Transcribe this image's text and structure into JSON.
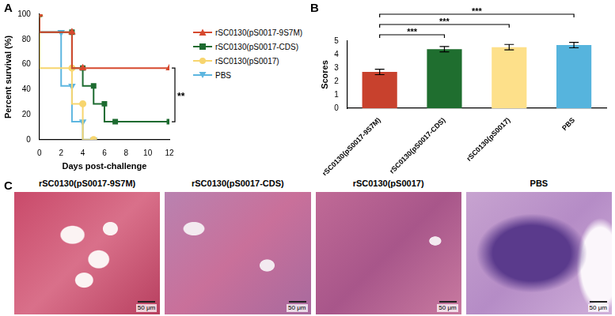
{
  "chart_data": [
    {
      "panel": "A",
      "type": "line",
      "line_style": "steps",
      "x_label": "Days post-challenge",
      "y_label": "Percent survival (%)",
      "xlim": [
        0,
        12
      ],
      "xticks": [
        0,
        2,
        4,
        6,
        8,
        10,
        12
      ],
      "ylim": [
        0,
        100
      ],
      "yticks": [
        0,
        20,
        40,
        60,
        80,
        100
      ],
      "grid": false,
      "legend": "right",
      "series": [
        {
          "name": "rSC0130(pS0017-9S7M)",
          "color": "#d6492e",
          "marker": "triangle",
          "x": [
            0,
            3,
            4,
            12
          ],
          "values": [
            100,
            85.7,
            57.1,
            57.1
          ]
        },
        {
          "name": "rSC0130(pS0017-CDS)",
          "color": "#1d6b30",
          "marker": "square",
          "x": [
            0,
            3,
            4,
            5,
            6,
            7,
            12
          ],
          "values": [
            100,
            85.7,
            57.1,
            42.9,
            28.6,
            14.3,
            14.3
          ]
        },
        {
          "name": "rSC0130(pS0017)",
          "color": "#f7d56e",
          "marker": "circle",
          "x": [
            0,
            3,
            4,
            5
          ],
          "values": [
            100,
            57.1,
            28.6,
            0
          ]
        },
        {
          "name": "PBS",
          "color": "#5db6e0",
          "marker": "triangle-down",
          "x": [
            0,
            2,
            3,
            4,
            5
          ],
          "values": [
            100,
            85.7,
            42.9,
            14.3,
            0
          ]
        }
      ],
      "annotations": [
        {
          "text": "**",
          "series": [
            "rSC0130(pS0017-9S7M)",
            "rSC0130(pS0017-CDS)"
          ]
        }
      ]
    },
    {
      "panel": "B",
      "type": "bar",
      "y_label": "Scores",
      "categories": [
        "rSC0130(pS0017-9S7M)",
        "rSC0130(pS0017-CDS)",
        "rSC0130(pS0017)",
        "PBS"
      ],
      "values": [
        2.7,
        4.4,
        4.55,
        4.7
      ],
      "errors": [
        0.2,
        0.2,
        0.2,
        0.2
      ],
      "colors": [
        "#c8412d",
        "#1f6e2f",
        "#fde08a",
        "#56b4dd"
      ],
      "ylim": [
        0,
        5
      ],
      "yticks": [
        0,
        1,
        2,
        3,
        4,
        5
      ],
      "grid": false,
      "annotations": [
        {
          "text": "***",
          "categories": [
            "rSC0130(pS0017-9S7M)",
            "rSC0130(pS0017-CDS)"
          ]
        },
        {
          "text": "***",
          "categories": [
            "rSC0130(pS0017-9S7M)",
            "rSC0130(pS0017)"
          ]
        },
        {
          "text": "***",
          "categories": [
            "rSC0130(pS0017-9S7M)",
            "PBS"
          ]
        }
      ]
    }
  ],
  "image_panel": {
    "panel": "C",
    "images": [
      {
        "title": "rSC0130(pS0017-9S7M)",
        "scale_bar": "50 μm"
      },
      {
        "title": "rSC0130(pS0017-CDS)",
        "scale_bar": "50 μm"
      },
      {
        "title": "rSC0130(pS0017)",
        "scale_bar": "50 μm"
      },
      {
        "title": "PBS",
        "scale_bar": "50 μm"
      }
    ]
  }
}
